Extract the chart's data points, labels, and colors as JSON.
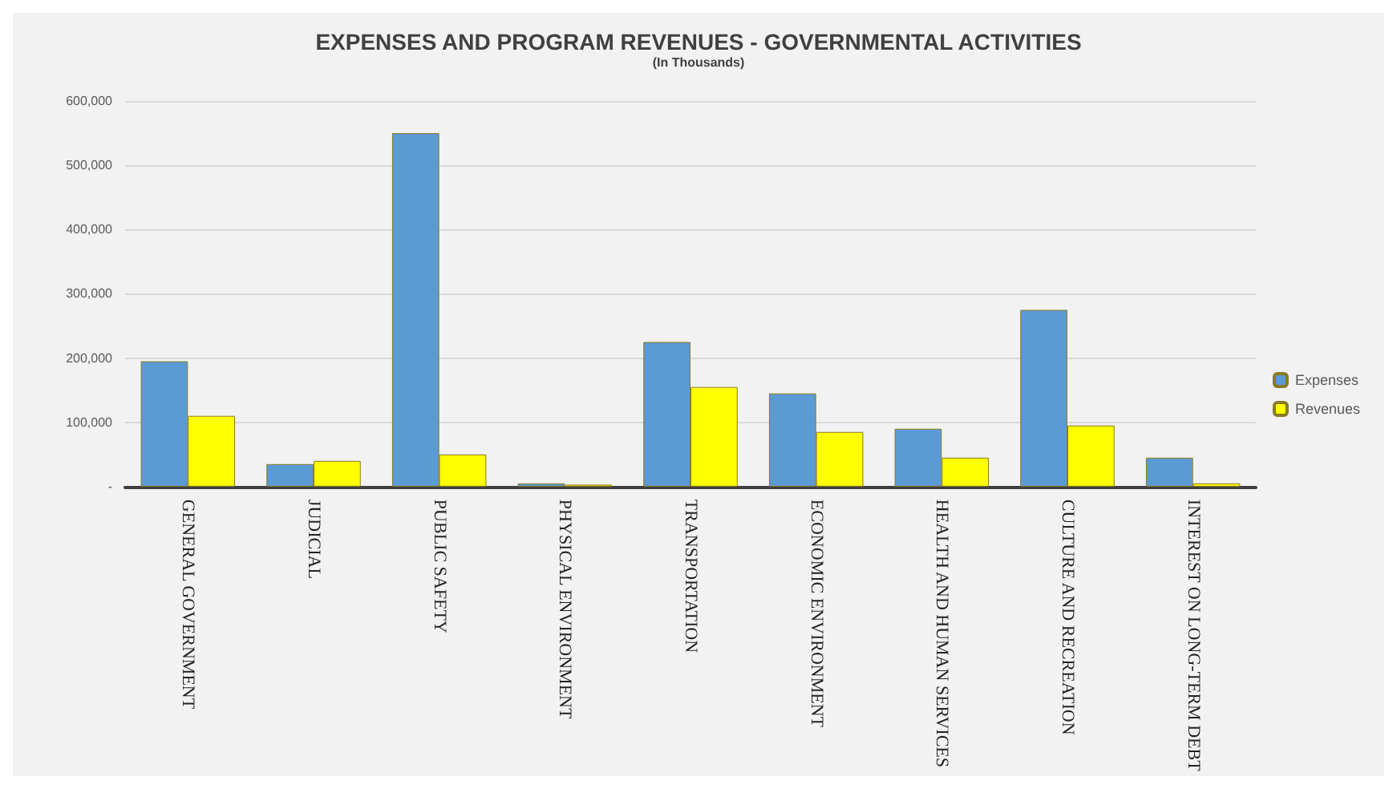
{
  "chart_data": {
    "type": "bar",
    "title": "EXPENSES AND PROGRAM REVENUES - GOVERNMENTAL ACTIVITIES",
    "subtitle": "(In Thousands)",
    "categories": [
      "GENERAL GOVERNMENT",
      "JUDICIAL",
      "PUBLIC SAFETY",
      "PHYSICAL ENVIRONMENT",
      "TRANSPORTATION",
      "ECONOMIC ENVIRONMENT",
      "HEALTH AND HUMAN SERVICES",
      "CULTURE AND RECREATION",
      "INTEREST ON LONG-TERM DEBT"
    ],
    "series": [
      {
        "name": "Expenses",
        "color": "#5b9bd5",
        "values": [
          195000,
          35000,
          550000,
          5000,
          225000,
          145000,
          90000,
          275000,
          45000
        ]
      },
      {
        "name": "Revenues",
        "color": "#ffff00",
        "values": [
          110000,
          40000,
          50000,
          3000,
          155000,
          85000,
          45000,
          95000,
          5000
        ]
      }
    ],
    "ylim": [
      0,
      600000
    ],
    "yticks": [
      {
        "value": 0,
        "label": "-"
      },
      {
        "value": 100000,
        "label": "100,000"
      },
      {
        "value": 200000,
        "label": "200,000"
      },
      {
        "value": 300000,
        "label": "300,000"
      },
      {
        "value": 400000,
        "label": "400,000"
      },
      {
        "value": 500000,
        "label": "500,000"
      },
      {
        "value": 600000,
        "label": "600,000"
      }
    ],
    "grid": "y",
    "legend": "right"
  }
}
